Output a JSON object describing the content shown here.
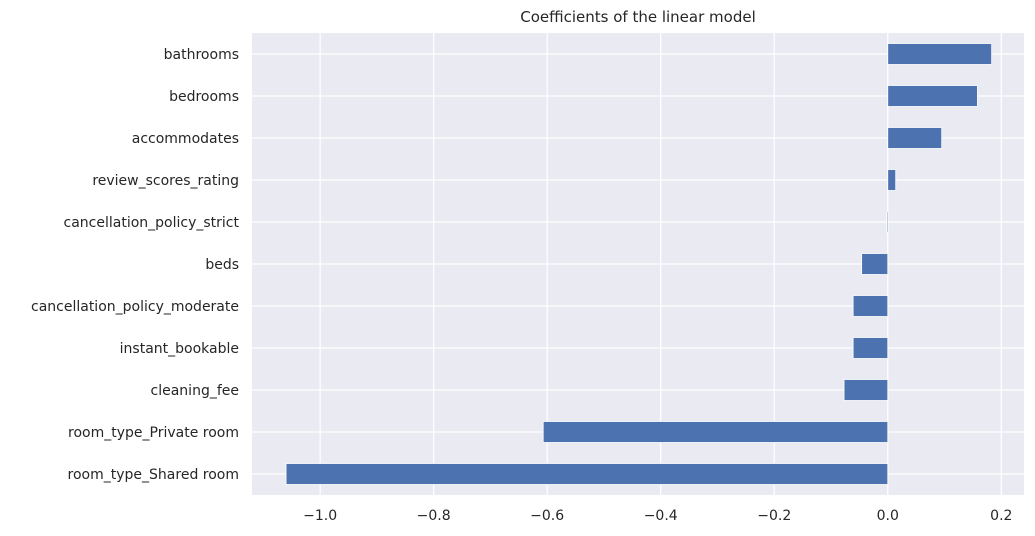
{
  "chart_data": {
    "type": "bar",
    "orientation": "horizontal",
    "title": "Coefficients of the linear model",
    "xlabel": "",
    "ylabel": "",
    "categories": [
      "bathrooms",
      "bedrooms",
      "accommodates",
      "review_scores_rating",
      "cancellation_policy_strict",
      "beds",
      "cancellation_policy_moderate",
      "instant_bookable",
      "cleaning_fee",
      "room_type_Private room",
      "room_type_Shared room"
    ],
    "values": [
      0.183,
      0.158,
      0.095,
      0.014,
      -0.002,
      -0.046,
      -0.061,
      -0.061,
      -0.077,
      -0.607,
      -1.06
    ],
    "xlim": [
      -1.12,
      0.24
    ],
    "xticks": [
      -1.0,
      -0.8,
      -0.6,
      -0.4,
      -0.2,
      0.0,
      0.2
    ],
    "xtick_labels": [
      "−1.0",
      "−0.8",
      "−0.6",
      "−0.4",
      "−0.2",
      "0.0",
      "0.2"
    ],
    "grid": true,
    "colors": {
      "bar": "#4c72b0",
      "plot_background": "#eaeaf2",
      "grid": "#ffffff",
      "text": "#262626"
    }
  }
}
